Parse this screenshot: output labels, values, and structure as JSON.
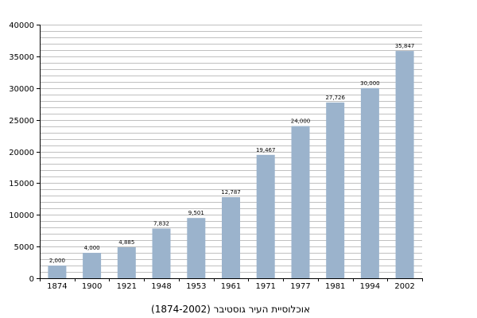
{
  "colors": {
    "bar": "#9bb3cc",
    "grid": "#c0c0c0",
    "axis": "#000000",
    "background": "#ffffff"
  },
  "chart_data": {
    "type": "bar",
    "title": "",
    "caption": "אוכלוסיית העיר גוסטיבר (1874-2002)",
    "xlabel": "",
    "ylabel": "",
    "ylim": [
      0,
      40000
    ],
    "y_ticks": [
      0,
      5000,
      10000,
      15000,
      20000,
      25000,
      30000,
      35000,
      40000
    ],
    "y_tick_labels": [
      "0",
      "5000",
      "10000",
      "15000",
      "20000",
      "25000",
      "30000",
      "35000",
      "40000"
    ],
    "minor_grid_step": 1000,
    "grid": true,
    "legend": "none",
    "categories": [
      "1874",
      "1900",
      "1921",
      "1948",
      "1953",
      "1961",
      "1971",
      "1977",
      "1981",
      "1994",
      "2002"
    ],
    "values": [
      2000,
      4000,
      4885,
      7832,
      9501,
      12787,
      19467,
      24000,
      27726,
      30000,
      35847
    ],
    "value_labels": [
      "2,000",
      "4,000",
      "4,885",
      "7,832",
      "9,501",
      "12,787",
      "19,467",
      "24,000",
      "27,726",
      "30,000",
      "35,847"
    ]
  }
}
